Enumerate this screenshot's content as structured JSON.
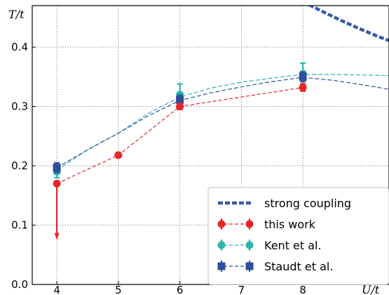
{
  "chart_data": {
    "type": "line",
    "xlabel": "U/t",
    "ylabel": "T/t",
    "xlim": [
      3.6,
      9.4
    ],
    "ylim": [
      0.0,
      0.47
    ],
    "x_ticks": [
      4,
      5,
      6,
      7,
      8
    ],
    "y_ticks": [
      0.0,
      0.1,
      0.2,
      0.3,
      0.4
    ],
    "x_tick_labels": [
      "4",
      "5",
      "6",
      "7",
      "8"
    ],
    "y_tick_labels": [
      "0.0",
      "0.1",
      "0.2",
      "0.3",
      "0.4"
    ],
    "grid": true,
    "legend_position": "bottom-right",
    "series": [
      {
        "name": "strong coupling",
        "color": "#3a5aa8",
        "style": "thick-dashed",
        "x": [
          8.0,
          8.3,
          8.6,
          8.9,
          9.2,
          9.4
        ],
        "y": [
          0.477,
          0.461,
          0.446,
          0.432,
          0.419,
          0.411
        ]
      },
      {
        "name": "this work",
        "color": "#e8262b",
        "style": "dashed-markers",
        "x": [
          4,
          5,
          6,
          8
        ],
        "y": [
          0.17,
          0.218,
          0.3,
          0.332
        ],
        "yerr": [
          0.003,
          0.004,
          0.005,
          0.006
        ],
        "arrow_down_to": 0.075
      },
      {
        "name": "Kent et al.",
        "color": "#2bb5ae",
        "style": "dashed-markers",
        "x": [
          4,
          6,
          8
        ],
        "y": [
          0.19,
          0.32,
          0.355
        ],
        "yerr": [
          0.01,
          0.018,
          0.018
        ],
        "fit_x": [
          4,
          4.5,
          5,
          5.5,
          6,
          6.5,
          7,
          7.5,
          8,
          8.5,
          9,
          9.4
        ],
        "fit_y": [
          0.193,
          0.227,
          0.255,
          0.289,
          0.316,
          0.331,
          0.341,
          0.348,
          0.354,
          0.354,
          0.353,
          0.352
        ]
      },
      {
        "name": "Staudt et al.",
        "color": "#2e4e9e",
        "style": "dashed-markers",
        "x": [
          4,
          6,
          8
        ],
        "y": [
          0.197,
          0.311,
          0.35
        ],
        "yerr": [
          0.008,
          0.008,
          0.008
        ],
        "fit_x": [
          4,
          4.5,
          5,
          5.5,
          6,
          6.5,
          7,
          7.5,
          8,
          8.5,
          9,
          9.4
        ],
        "fit_y": [
          0.197,
          0.227,
          0.255,
          0.285,
          0.31,
          0.323,
          0.333,
          0.342,
          0.349,
          0.344,
          0.336,
          0.329
        ]
      }
    ]
  }
}
